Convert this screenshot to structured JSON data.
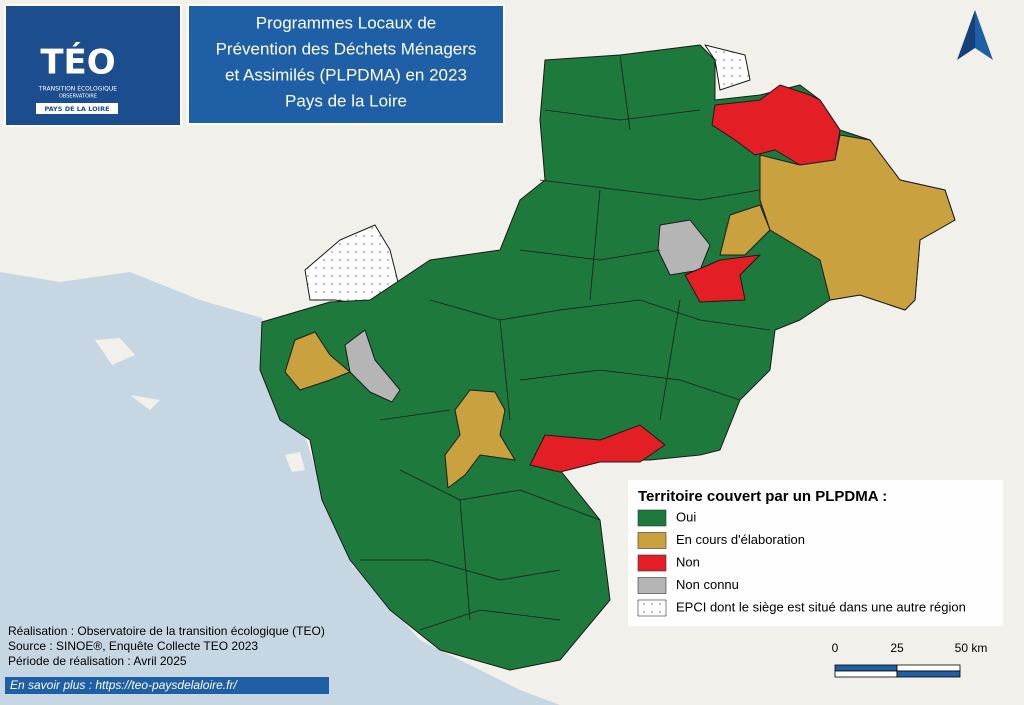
{
  "logo": {
    "name": "TÉO",
    "line1": "TRANSITION ÉCOLOGIQUE",
    "line2": "OBSERVATOIRE",
    "region": "PAYS DE LA LOIRE"
  },
  "title": [
    "Programmes Locaux de",
    "Prévention des Déchets Ménagers",
    "et Assimilés (PLPDMA) en 2023",
    "Pays de la Loire"
  ],
  "legend": {
    "title": "Territoire couvert par un PLPDMA :",
    "items": [
      {
        "label": "Oui",
        "color": "#1e7a3c"
      },
      {
        "label": "En cours d'élaboration",
        "color": "#c9a23f"
      },
      {
        "label": "Non",
        "color": "#e31e24"
      },
      {
        "label": "Non connu",
        "color": "#b5b5b5"
      },
      {
        "label": "EPCI dont le siège est situé dans une autre région",
        "color": "dotted"
      }
    ]
  },
  "scale": [
    "0",
    "25",
    "50 km"
  ],
  "credits": [
    "Réalisation : Observatoire de la transition écologique (TEO)",
    "Source : SINOE®, Enquête Collecte TEO 2023",
    "Période de réalisation : Avril 2025"
  ],
  "link": "En savoir plus : https://teo-paysdelaloire.fr/"
}
